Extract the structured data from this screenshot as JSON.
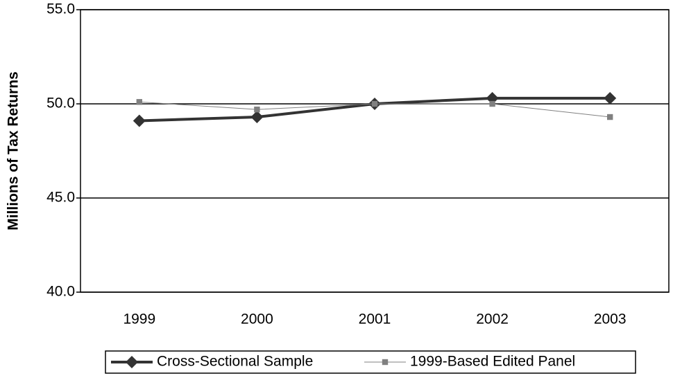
{
  "chart_data": {
    "type": "line",
    "y_label": "Millions of Tax Returns",
    "categories": [
      "1999",
      "2000",
      "2001",
      "2002",
      "2003"
    ],
    "series": [
      {
        "name": "Cross-Sectional Sample",
        "color": "#333333",
        "line_width": 4,
        "marker": "diamond",
        "values": [
          49.1,
          49.3,
          50.0,
          50.3,
          50.3
        ]
      },
      {
        "name": "1999-Based Edited Panel",
        "color": "#808080",
        "line_width": 1,
        "marker": "square",
        "values": [
          50.1,
          49.7,
          50.0,
          50.0,
          49.3
        ]
      }
    ],
    "ylim": [
      40,
      55
    ],
    "yticks": [
      {
        "value": 40,
        "label": "40.0"
      },
      {
        "value": 45,
        "label": "45.0"
      },
      {
        "value": 50,
        "label": "50.0"
      },
      {
        "value": 55,
        "label": "55.0"
      }
    ],
    "grid": true,
    "legend": "bottom"
  }
}
